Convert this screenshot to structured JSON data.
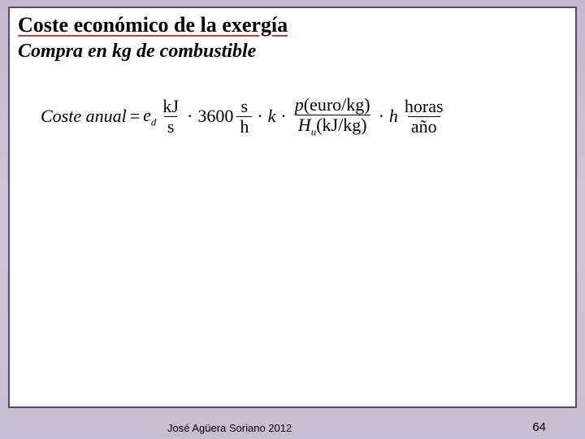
{
  "title": "Coste económico de la exergía",
  "subtitle": "Compra en kg de combustible",
  "formula": {
    "lhs": "Coste anual",
    "eq": "=",
    "var1": "e",
    "var1_sub": "d",
    "frac1_num": "kJ",
    "frac1_den": "s",
    "op1": "·",
    "coef": "3600",
    "frac2_num": "s",
    "frac2_den": "h",
    "op2": "·",
    "var_k": "k",
    "op3": "·",
    "frac3_num_p": "p",
    "frac3_num_unit": "(euro/kg)",
    "frac3_den_H": "H",
    "frac3_den_sub": "u",
    "frac3_den_unit": "(kJ/kg)",
    "op4": "·",
    "var_h": "h",
    "frac4_num": "horas",
    "frac4_den": "año"
  },
  "footer": {
    "author": "José Agüera Soriano 2012",
    "page": "64"
  },
  "colors": {
    "page_bg_top": "#c5b8d0",
    "page_bg_bottom": "#c8bdd2",
    "box_bg": "#ffffff",
    "box_border": "#5a4a6a",
    "text": "#000000",
    "underline": "#d04040"
  }
}
